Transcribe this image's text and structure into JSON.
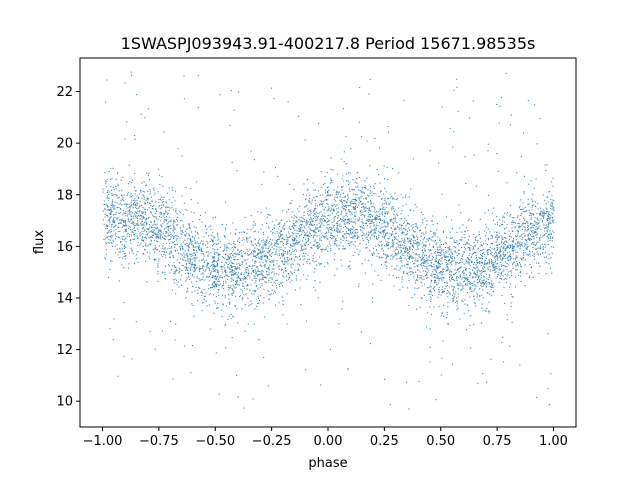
{
  "chart_data": {
    "type": "scatter",
    "title": "1SWASPJ093943.91-400217.8 Period 15671.98535s",
    "xlabel": "phase",
    "ylabel": "flux",
    "xlim": [
      -1.1,
      1.1
    ],
    "ylim": [
      9.0,
      23.3
    ],
    "x_ticks": [
      -1.0,
      -0.75,
      -0.5,
      -0.25,
      0.0,
      0.25,
      0.5,
      0.75,
      1.0
    ],
    "x_tick_labels": [
      "−1.00",
      "−0.75",
      "−0.50",
      "−0.25",
      "0.00",
      "0.25",
      "0.50",
      "0.75",
      "1.00"
    ],
    "y_ticks": [
      10,
      12,
      14,
      16,
      18,
      20,
      22
    ],
    "y_tick_labels": [
      "10",
      "12",
      "14",
      "16",
      "18",
      "20",
      "22"
    ],
    "grid": false,
    "marker_color": "#1f77b4",
    "series": [
      {
        "description_of_trend": "phase-folded light curve",
        "x_range": [
          -1.0,
          1.0
        ],
        "trend_x": [
          -1.0,
          -0.9,
          -0.8,
          -0.7,
          -0.6,
          -0.5,
          -0.4,
          -0.3,
          -0.2,
          -0.1,
          0.0,
          0.1,
          0.2,
          0.3,
          0.4,
          0.5,
          0.6,
          0.7,
          0.8,
          0.9,
          1.0
        ],
        "trend_y": [
          17.0,
          17.2,
          17.0,
          16.4,
          15.7,
          15.2,
          15.0,
          15.3,
          15.9,
          16.6,
          17.1,
          17.2,
          17.0,
          16.4,
          15.7,
          15.1,
          15.0,
          15.3,
          15.9,
          16.6,
          17.0
        ],
        "scatter_spread": 0.8,
        "outlier_range": [
          9.7,
          22.9
        ]
      }
    ]
  }
}
